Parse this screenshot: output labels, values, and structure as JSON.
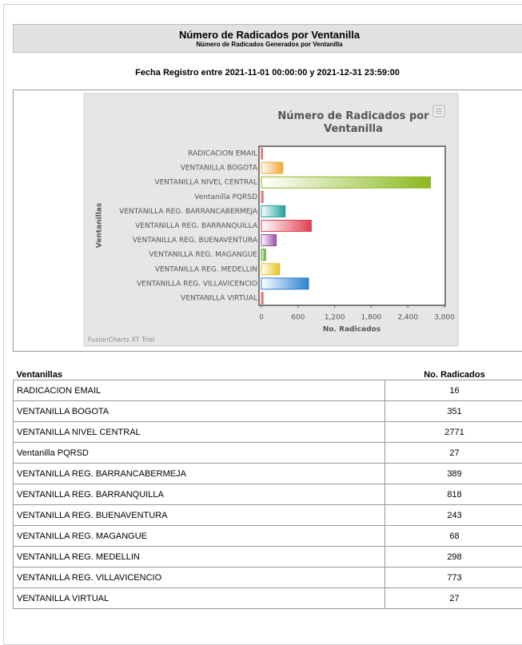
{
  "header": {
    "title": "Número de Radicados por Ventanilla",
    "subtitle": "Número de Radicados Generados por Ventanilla"
  },
  "date_range": "Fecha Registro entre 2021-11-01 00:00:00 y 2021-12-31 23:59:00",
  "chart_data": {
    "type": "bar",
    "orientation": "horizontal",
    "title": "Número de Radicados por Ventanilla",
    "x_label": "No. Radicados",
    "y_label": "Ventanillas",
    "watermark": "FusionCharts XT Trial",
    "categories": [
      "RADICACION EMAIL",
      "VENTANILLA BOGOTA",
      "VENTANILLA NIVEL CENTRAL",
      "Ventanilla PQRSD",
      "VENTANILLA REG. BARRANCABERMEJA",
      "VENTANILLA REG. BARRANQUILLA",
      "VENTANILLA REG. BUENAVENTURA",
      "VENTANILLA REG. MAGANGUE",
      "VENTANILLA REG. MEDELLIN",
      "VENTANILLA REG. VILLAVICENCIO",
      "VENTANILLA VIRTUAL"
    ],
    "values": [
      16,
      351,
      2771,
      27,
      389,
      818,
      243,
      68,
      298,
      773,
      27
    ],
    "colors": [
      "#d9534f",
      "#f0a830",
      "#8cb820",
      "#d9534f",
      "#1fa0a0",
      "#e04050",
      "#9a4fa8",
      "#58a030",
      "#e8c020",
      "#2a80d0",
      "#d9534f"
    ],
    "xlim": [
      0,
      3000
    ],
    "xticks": [
      0,
      {
        "value": 600,
        "label": "600"
      },
      {
        "value": 1200,
        "label": "1,200"
      },
      {
        "value": 1800,
        "label": "1,800"
      },
      {
        "value": 2400,
        "label": "2,400"
      },
      {
        "value": 3000,
        "label": "3,000"
      }
    ]
  },
  "table": {
    "headers": [
      "Ventanillas",
      "No. Radicados"
    ]
  }
}
